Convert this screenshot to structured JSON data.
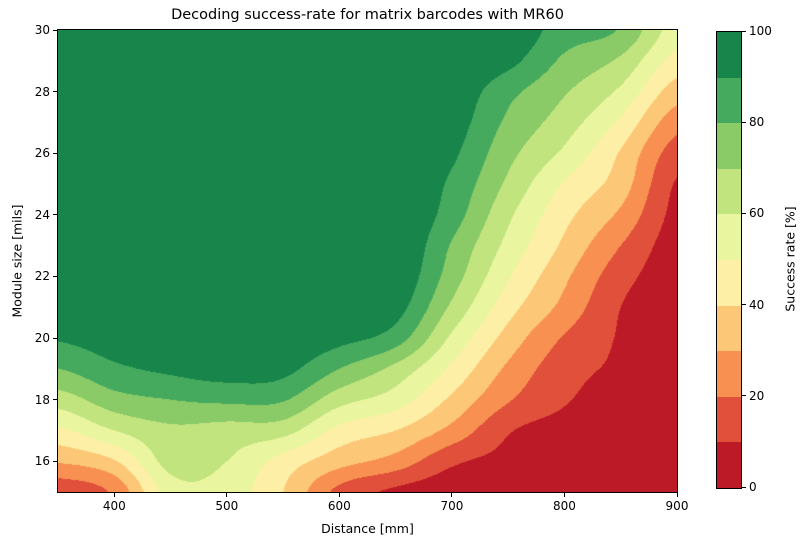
{
  "chart_data": {
    "type": "heatmap",
    "variant": "filled-contour",
    "title": "Decoding success-rate for matrix barcodes with MR60",
    "xlabel": "Distance [mm]",
    "ylabel": "Module size [mils]",
    "xlim": [
      350,
      900
    ],
    "ylim": [
      15,
      30
    ],
    "zlim": [
      0,
      100
    ],
    "grid": false,
    "x": [
      350,
      400,
      450,
      500,
      550,
      600,
      650,
      700,
      750,
      800,
      850,
      900
    ],
    "y": [
      15,
      16,
      17,
      18,
      19,
      20,
      21,
      22,
      23,
      24,
      25,
      26,
      27,
      28,
      29,
      30
    ],
    "z": [
      [
        13,
        22,
        55,
        55,
        40,
        17,
        8,
        4,
        3,
        1,
        0,
        0
      ],
      [
        31,
        39,
        64,
        60,
        46,
        34,
        26,
        12,
        7,
        3,
        1,
        0
      ],
      [
        48,
        60,
        68,
        66,
        64,
        47,
        40,
        27,
        11,
        6,
        2,
        0
      ],
      [
        65,
        76,
        80,
        82,
        81,
        64,
        55,
        38,
        21,
        11,
        5,
        1
      ],
      [
        80,
        88,
        92,
        95,
        93,
        80,
        67,
        48,
        28,
        14,
        8,
        1
      ],
      [
        91,
        95,
        97,
        98,
        97,
        93,
        85,
        58,
        36,
        19,
        9,
        2
      ],
      [
        96,
        98,
        99,
        100,
        99,
        97,
        94,
        68,
        44,
        27,
        10,
        3
      ],
      [
        99,
        100,
        100,
        100,
        100,
        99,
        98,
        75,
        51,
        32,
        14,
        4
      ],
      [
        100,
        100,
        100,
        100,
        100,
        100,
        100,
        79,
        57,
        38,
        20,
        5
      ],
      [
        100,
        100,
        100,
        100,
        100,
        100,
        100,
        85,
        62,
        43,
        28,
        7
      ],
      [
        100,
        100,
        100,
        100,
        100,
        100,
        100,
        88,
        68,
        49,
        35,
        9
      ],
      [
        100,
        100,
        100,
        100,
        100,
        100,
        100,
        92,
        73,
        58,
        39,
        15
      ],
      [
        100,
        100,
        100,
        100,
        100,
        100,
        100,
        95,
        78,
        65,
        48,
        24
      ],
      [
        100,
        100,
        100,
        100,
        100,
        100,
        100,
        97,
        83,
        71,
        58,
        35
      ],
      [
        100,
        100,
        100,
        100,
        100,
        100,
        100,
        99,
        93,
        78,
        68,
        46
      ],
      [
        100,
        100,
        100,
        100,
        100,
        100,
        100,
        100,
        98,
        85,
        79,
        55
      ]
    ],
    "levels": [
      0,
      10,
      20,
      30,
      40,
      50,
      60,
      70,
      80,
      90,
      100
    ],
    "x_ticks": [
      400,
      500,
      600,
      700,
      800,
      900
    ],
    "y_ticks": [
      16,
      18,
      20,
      22,
      24,
      26,
      28,
      30
    ],
    "legend_position": "right",
    "colorbar": {
      "label": "Success rate [%]",
      "ticks": [
        0,
        20,
        40,
        60,
        80,
        100
      ],
      "colors": [
        "#bd1a27",
        "#e0503a",
        "#f89051",
        "#fdc778",
        "#fdf0a6",
        "#e9f59f",
        "#c1e47e",
        "#8aca67",
        "#45aa5e",
        "#18864b"
      ]
    }
  }
}
